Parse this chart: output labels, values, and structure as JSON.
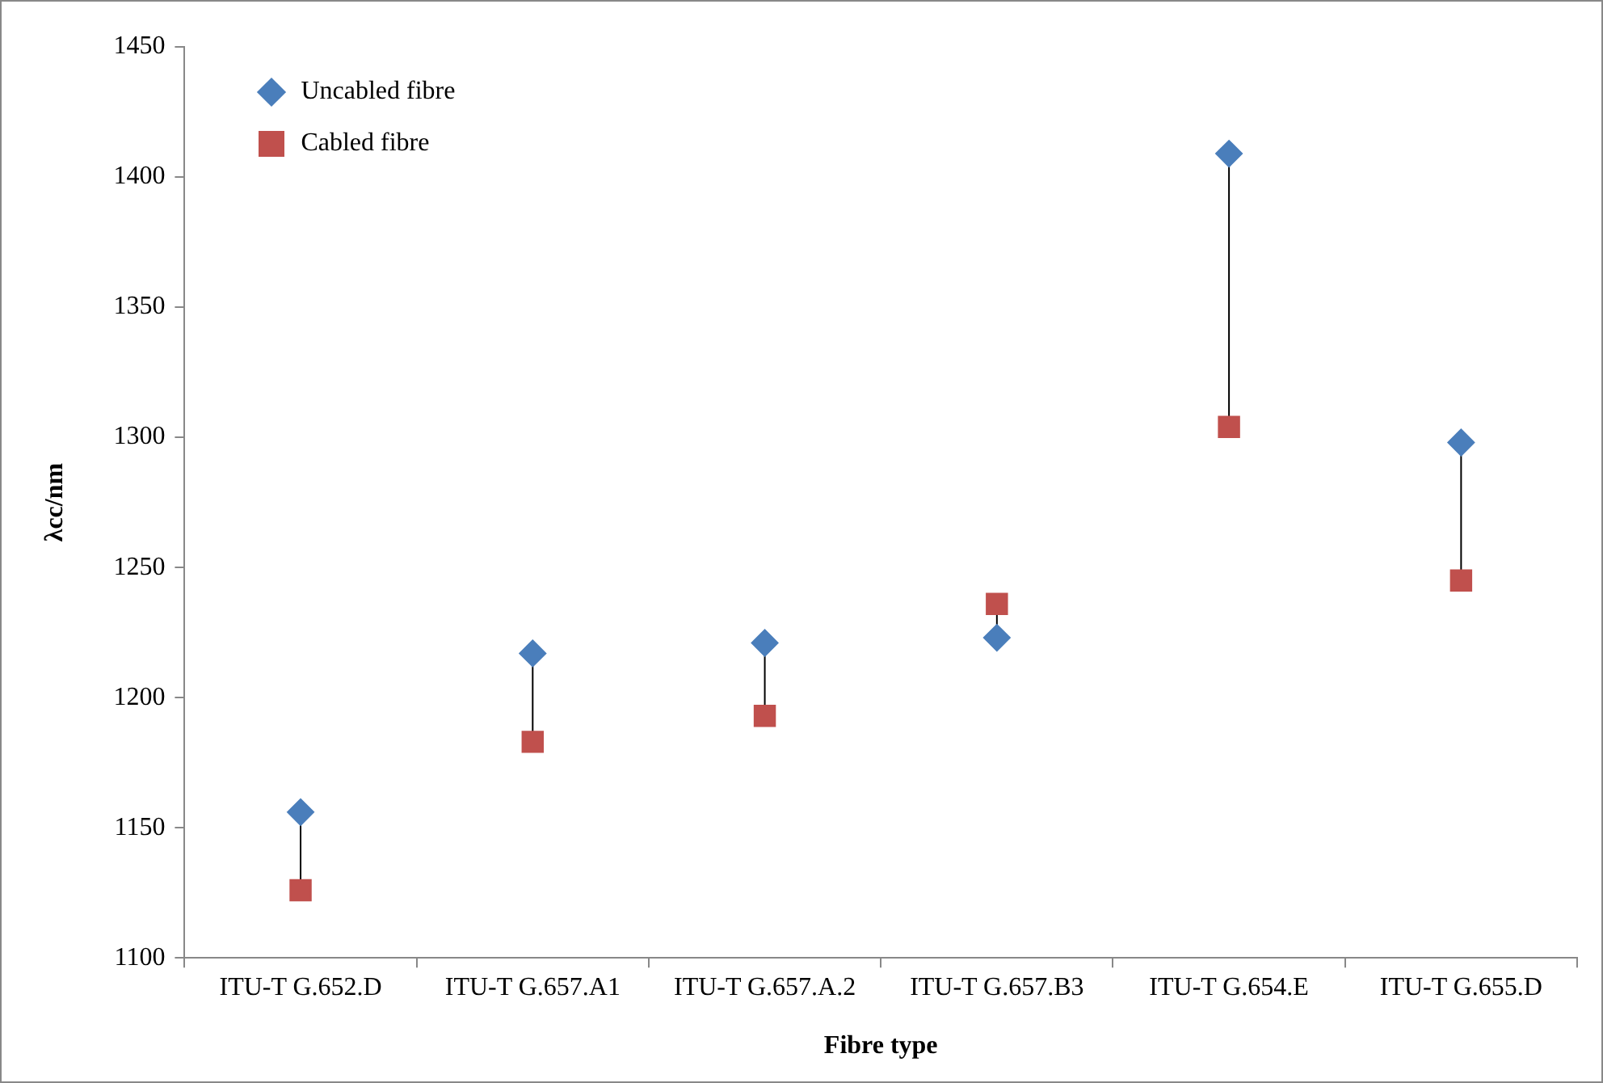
{
  "chart_data": {
    "type": "scatter",
    "xlabel": "Fibre type",
    "ylabel": "λcc/nm",
    "categories": [
      "ITU-T G.652.D",
      "ITU-T G.657.A1",
      "ITU-T G.657.A.2",
      "ITU-T G.657.B3",
      "ITU-T G.654.E",
      "ITU-T G.655.D"
    ],
    "series": [
      {
        "name": "Uncabled fibre",
        "color": "#4a7ebb",
        "marker": "diamond",
        "values": [
          1156,
          1217,
          1221,
          1223,
          1409,
          1298
        ]
      },
      {
        "name": "Cabled fibre",
        "color": "#c0504d",
        "marker": "square",
        "values": [
          1126,
          1183,
          1193,
          1236,
          1304,
          1245
        ]
      }
    ],
    "ylim": [
      1100,
      1450
    ],
    "yticks": [
      1100,
      1150,
      1200,
      1250,
      1300,
      1350,
      1400,
      1450
    ],
    "grid": false,
    "legend": "top left"
  }
}
